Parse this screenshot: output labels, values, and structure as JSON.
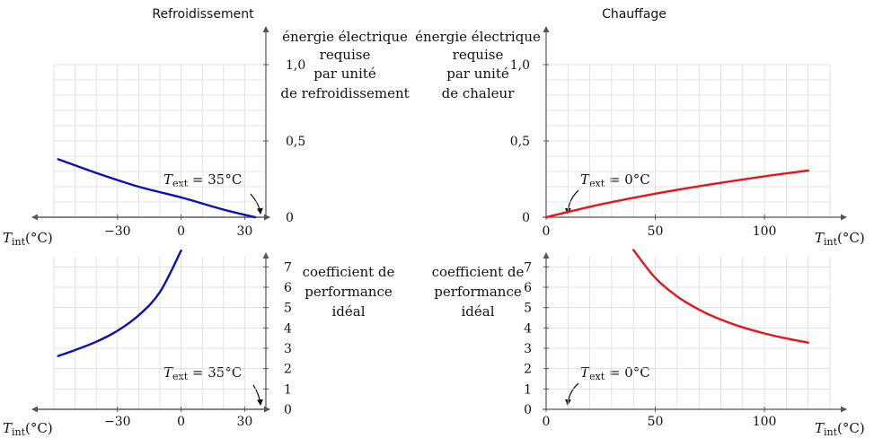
{
  "chart_data": [
    {
      "type": "line",
      "title": "Refroidissement",
      "xlabel": "T_int (°C)",
      "ylabel": [
        "énergie électrique",
        "requise",
        "par unité",
        "de refroidissement"
      ],
      "annotation": "T_ext = 35°C",
      "xlim": [
        -60,
        40
      ],
      "ylim": [
        0,
        1.0
      ],
      "x_ticks": [
        "−30",
        "0",
        "30"
      ],
      "y_ticks": [
        "0",
        "0,5",
        "1,0"
      ],
      "color": "#0a10b8",
      "x": [
        -58,
        -40,
        -20,
        0,
        20,
        35
      ],
      "y": [
        0.38,
        0.29,
        0.2,
        0.13,
        0.05,
        0.0
      ]
    },
    {
      "type": "line",
      "title": "Chauffage",
      "xlabel": "T_int (°C)",
      "ylabel": [
        "énergie électrique",
        "requise",
        "par unité",
        "de chaleur"
      ],
      "annotation": "T_ext = 0°C",
      "xlim": [
        0,
        130
      ],
      "ylim": [
        0,
        1.0
      ],
      "x_ticks": [
        "0",
        "50",
        "100"
      ],
      "y_ticks": [
        "0",
        "0,5",
        "1,0"
      ],
      "color": "#e8141b",
      "x": [
        0,
        25,
        50,
        75,
        100,
        120
      ],
      "y": [
        0.0,
        0.084,
        0.154,
        0.214,
        0.268,
        0.306
      ]
    },
    {
      "type": "line",
      "title": "",
      "xlabel": "T_int (°C)",
      "ylabel": [
        "coefficient de",
        "performance",
        "idéal"
      ],
      "annotation": "T_ext = 35°C",
      "xlim": [
        -60,
        40
      ],
      "ylim": [
        0,
        7.5
      ],
      "x_ticks": [
        "−30",
        "0",
        "30"
      ],
      "y_ticks": [
        "0",
        "1",
        "2",
        "3",
        "4",
        "5",
        "6",
        "7"
      ],
      "color": "#0a10b8",
      "x": [
        -58,
        -50,
        -40,
        -30,
        -20,
        -10,
        0
      ],
      "y": [
        2.62,
        2.91,
        3.32,
        3.86,
        4.62,
        5.76,
        7.8
      ]
    },
    {
      "type": "line",
      "title": "",
      "xlabel": "T_int (°C)",
      "ylabel": [
        "coefficient de",
        "performance",
        "idéal"
      ],
      "annotation": "T_ext = 0°C",
      "xlim": [
        0,
        130
      ],
      "ylim": [
        0,
        7.5
      ],
      "x_ticks": [
        "0",
        "50",
        "100"
      ],
      "y_ticks": [
        "0",
        "1",
        "2",
        "3",
        "4",
        "5",
        "6",
        "7"
      ],
      "color": "#e8141b",
      "x": [
        40,
        50,
        60,
        70,
        80,
        90,
        100,
        110,
        120
      ],
      "y": [
        7.83,
        6.46,
        5.55,
        4.9,
        4.41,
        4.03,
        3.73,
        3.48,
        3.28
      ]
    }
  ]
}
